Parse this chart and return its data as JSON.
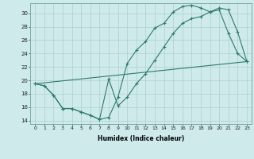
{
  "xlabel": "Humidex (Indice chaleur)",
  "xlim": [
    -0.5,
    23.5
  ],
  "ylim": [
    13.5,
    31.5
  ],
  "yticks": [
    14,
    16,
    18,
    20,
    22,
    24,
    26,
    28,
    30
  ],
  "xticks": [
    0,
    1,
    2,
    3,
    4,
    5,
    6,
    7,
    8,
    9,
    10,
    11,
    12,
    13,
    14,
    15,
    16,
    17,
    18,
    19,
    20,
    21,
    22,
    23
  ],
  "bg_color": "#ceeaea",
  "line_color": "#2d7a70",
  "line1_x": [
    0,
    1,
    2,
    3,
    4,
    5,
    6,
    7,
    8,
    9,
    10,
    11,
    12,
    13,
    14,
    15,
    16,
    17,
    18,
    19,
    20,
    21,
    22,
    23
  ],
  "line1_y": [
    19.5,
    19.2,
    17.8,
    15.8,
    15.8,
    15.3,
    14.8,
    14.2,
    20.2,
    16.2,
    17.5,
    19.5,
    21.0,
    23.0,
    25.0,
    27.0,
    28.5,
    29.2,
    29.5,
    30.2,
    30.8,
    30.5,
    27.2,
    22.8
  ],
  "line2_x": [
    0,
    1,
    2,
    3,
    4,
    5,
    6,
    7,
    8,
    9,
    10,
    11,
    12,
    13,
    14,
    15,
    16,
    17,
    18,
    19,
    20,
    21,
    22,
    23
  ],
  "line2_y": [
    19.5,
    19.2,
    17.8,
    15.8,
    15.8,
    15.3,
    14.8,
    14.2,
    14.5,
    17.5,
    22.5,
    24.5,
    25.8,
    27.8,
    28.5,
    30.2,
    31.0,
    31.2,
    30.8,
    30.2,
    30.5,
    27.0,
    24.0,
    22.8
  ],
  "line3_x": [
    0,
    23
  ],
  "line3_y": [
    19.5,
    22.8
  ]
}
